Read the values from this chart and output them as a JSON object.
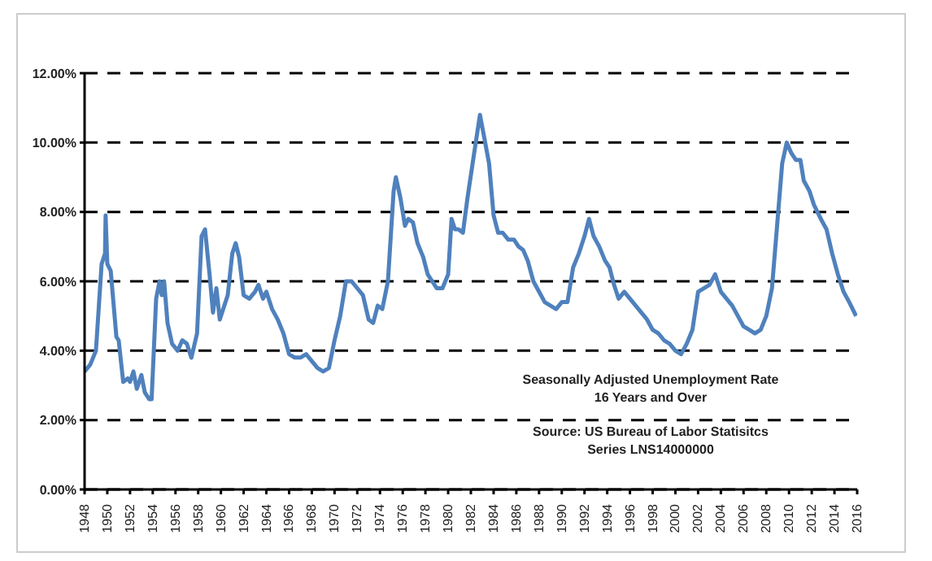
{
  "chart_data": {
    "type": "line",
    "annotations": [
      "Seasonally Adjusted Unemployment Rate",
      "16 Years and Over",
      "Source:  US  Bureau of Labor Statisitcs",
      "Series LNS14000000"
    ],
    "x": [
      1948.0,
      1948.5,
      1949.0,
      1949.5,
      1949.8,
      1949.85,
      1950.0,
      1950.3,
      1950.8,
      1951.0,
      1951.4,
      1951.8,
      1952.0,
      1952.3,
      1952.6,
      1953.0,
      1953.3,
      1953.7,
      1953.9,
      1954.3,
      1954.6,
      1954.8,
      1955.0,
      1955.3,
      1955.7,
      1956.2,
      1956.6,
      1957.0,
      1957.4,
      1957.9,
      1958.3,
      1958.6,
      1959.0,
      1959.3,
      1959.6,
      1959.9,
      1960.3,
      1960.6,
      1961.0,
      1961.3,
      1961.6,
      1962.0,
      1962.5,
      1963.0,
      1963.3,
      1963.7,
      1964.0,
      1964.5,
      1965.0,
      1965.5,
      1966.0,
      1966.5,
      1967.0,
      1967.5,
      1968.0,
      1968.5,
      1969.0,
      1969.5,
      1970.0,
      1970.5,
      1971.0,
      1971.5,
      1972.0,
      1972.5,
      1973.0,
      1973.4,
      1973.8,
      1974.2,
      1974.7,
      1975.2,
      1975.4,
      1975.8,
      1976.2,
      1976.5,
      1976.9,
      1977.3,
      1977.8,
      1978.2,
      1978.6,
      1979.0,
      1979.5,
      1980.0,
      1980.3,
      1980.6,
      1980.9,
      1981.3,
      1981.7,
      1982.2,
      1982.8,
      1983.2,
      1983.6,
      1984.0,
      1984.4,
      1984.8,
      1985.3,
      1985.8,
      1986.2,
      1986.6,
      1987.0,
      1987.5,
      1988.0,
      1988.5,
      1989.0,
      1989.5,
      1990.0,
      1990.5,
      1991.0,
      1991.5,
      1992.0,
      1992.4,
      1992.8,
      1993.3,
      1993.8,
      1994.2,
      1994.6,
      1995.0,
      1995.5,
      1996.0,
      1996.5,
      1997.0,
      1997.5,
      1998.0,
      1998.5,
      1999.0,
      1999.5,
      2000.0,
      2000.5,
      2001.0,
      2001.5,
      2002.0,
      2002.5,
      2003.0,
      2003.5,
      2004.0,
      2004.5,
      2005.0,
      2005.5,
      2006.0,
      2006.5,
      2007.0,
      2007.5,
      2008.0,
      2008.5,
      2009.0,
      2009.4,
      2009.8,
      2010.2,
      2010.6,
      2011.0,
      2011.3,
      2011.8,
      2012.2,
      2012.8,
      2013.3,
      2013.8,
      2014.3,
      2014.8,
      2015.3,
      2015.9
    ],
    "series": [
      {
        "color": "#4f81bd",
        "values": [
          3.4,
          3.6,
          4.0,
          6.5,
          6.8,
          7.9,
          6.5,
          6.3,
          4.4,
          4.3,
          3.1,
          3.2,
          3.1,
          3.4,
          2.9,
          3.3,
          2.8,
          2.6,
          2.6,
          5.5,
          6.0,
          5.6,
          6.0,
          4.8,
          4.2,
          4.0,
          4.3,
          4.2,
          3.8,
          4.5,
          7.3,
          7.5,
          6.2,
          5.1,
          5.8,
          4.9,
          5.3,
          5.6,
          6.8,
          7.1,
          6.7,
          5.6,
          5.5,
          5.7,
          5.9,
          5.5,
          5.7,
          5.2,
          4.9,
          4.5,
          3.9,
          3.8,
          3.8,
          3.9,
          3.7,
          3.5,
          3.4,
          3.5,
          4.3,
          5.0,
          6.0,
          6.0,
          5.8,
          5.6,
          4.9,
          4.8,
          5.3,
          5.2,
          6.0,
          8.6,
          9.0,
          8.4,
          7.6,
          7.8,
          7.7,
          7.1,
          6.7,
          6.2,
          6.0,
          5.8,
          5.8,
          6.2,
          7.8,
          7.5,
          7.5,
          7.4,
          8.4,
          9.5,
          10.8,
          10.1,
          9.4,
          7.9,
          7.4,
          7.4,
          7.2,
          7.2,
          7.0,
          6.9,
          6.6,
          6.0,
          5.7,
          5.4,
          5.3,
          5.2,
          5.4,
          5.4,
          6.4,
          6.8,
          7.3,
          7.8,
          7.3,
          7.0,
          6.6,
          6.4,
          5.9,
          5.5,
          5.7,
          5.5,
          5.3,
          5.1,
          4.9,
          4.6,
          4.5,
          4.3,
          4.2,
          4.0,
          3.9,
          4.2,
          4.6,
          5.7,
          5.8,
          5.9,
          6.2,
          5.7,
          5.5,
          5.3,
          5.0,
          4.7,
          4.6,
          4.5,
          4.6,
          5.0,
          5.8,
          7.8,
          9.4,
          10.0,
          9.7,
          9.5,
          9.5,
          8.9,
          8.6,
          8.2,
          7.8,
          7.5,
          6.8,
          6.2,
          5.7,
          5.4,
          5.0
        ]
      }
    ],
    "xlim": [
      1948,
      2016
    ],
    "xticks": [
      1948,
      1950,
      1952,
      1954,
      1956,
      1958,
      1960,
      1962,
      1964,
      1966,
      1968,
      1970,
      1972,
      1974,
      1976,
      1978,
      1980,
      1982,
      1984,
      1986,
      1988,
      1990,
      1992,
      1994,
      1996,
      1998,
      2000,
      2002,
      2004,
      2006,
      2008,
      2010,
      2012,
      2014,
      2016
    ],
    "ylim": [
      0,
      12
    ],
    "yticks": [
      {
        "value": 0,
        "label": "0.00%"
      },
      {
        "value": 2,
        "label": "2.00%"
      },
      {
        "value": 4,
        "label": "4.00%"
      },
      {
        "value": 6,
        "label": "6.00%"
      },
      {
        "value": 8,
        "label": "8.00%"
      },
      {
        "value": 10,
        "label": "10.00%"
      },
      {
        "value": 12,
        "label": "12.00%"
      }
    ],
    "grid": "y",
    "legend": false,
    "marker": "none",
    "line_style": "solid"
  }
}
